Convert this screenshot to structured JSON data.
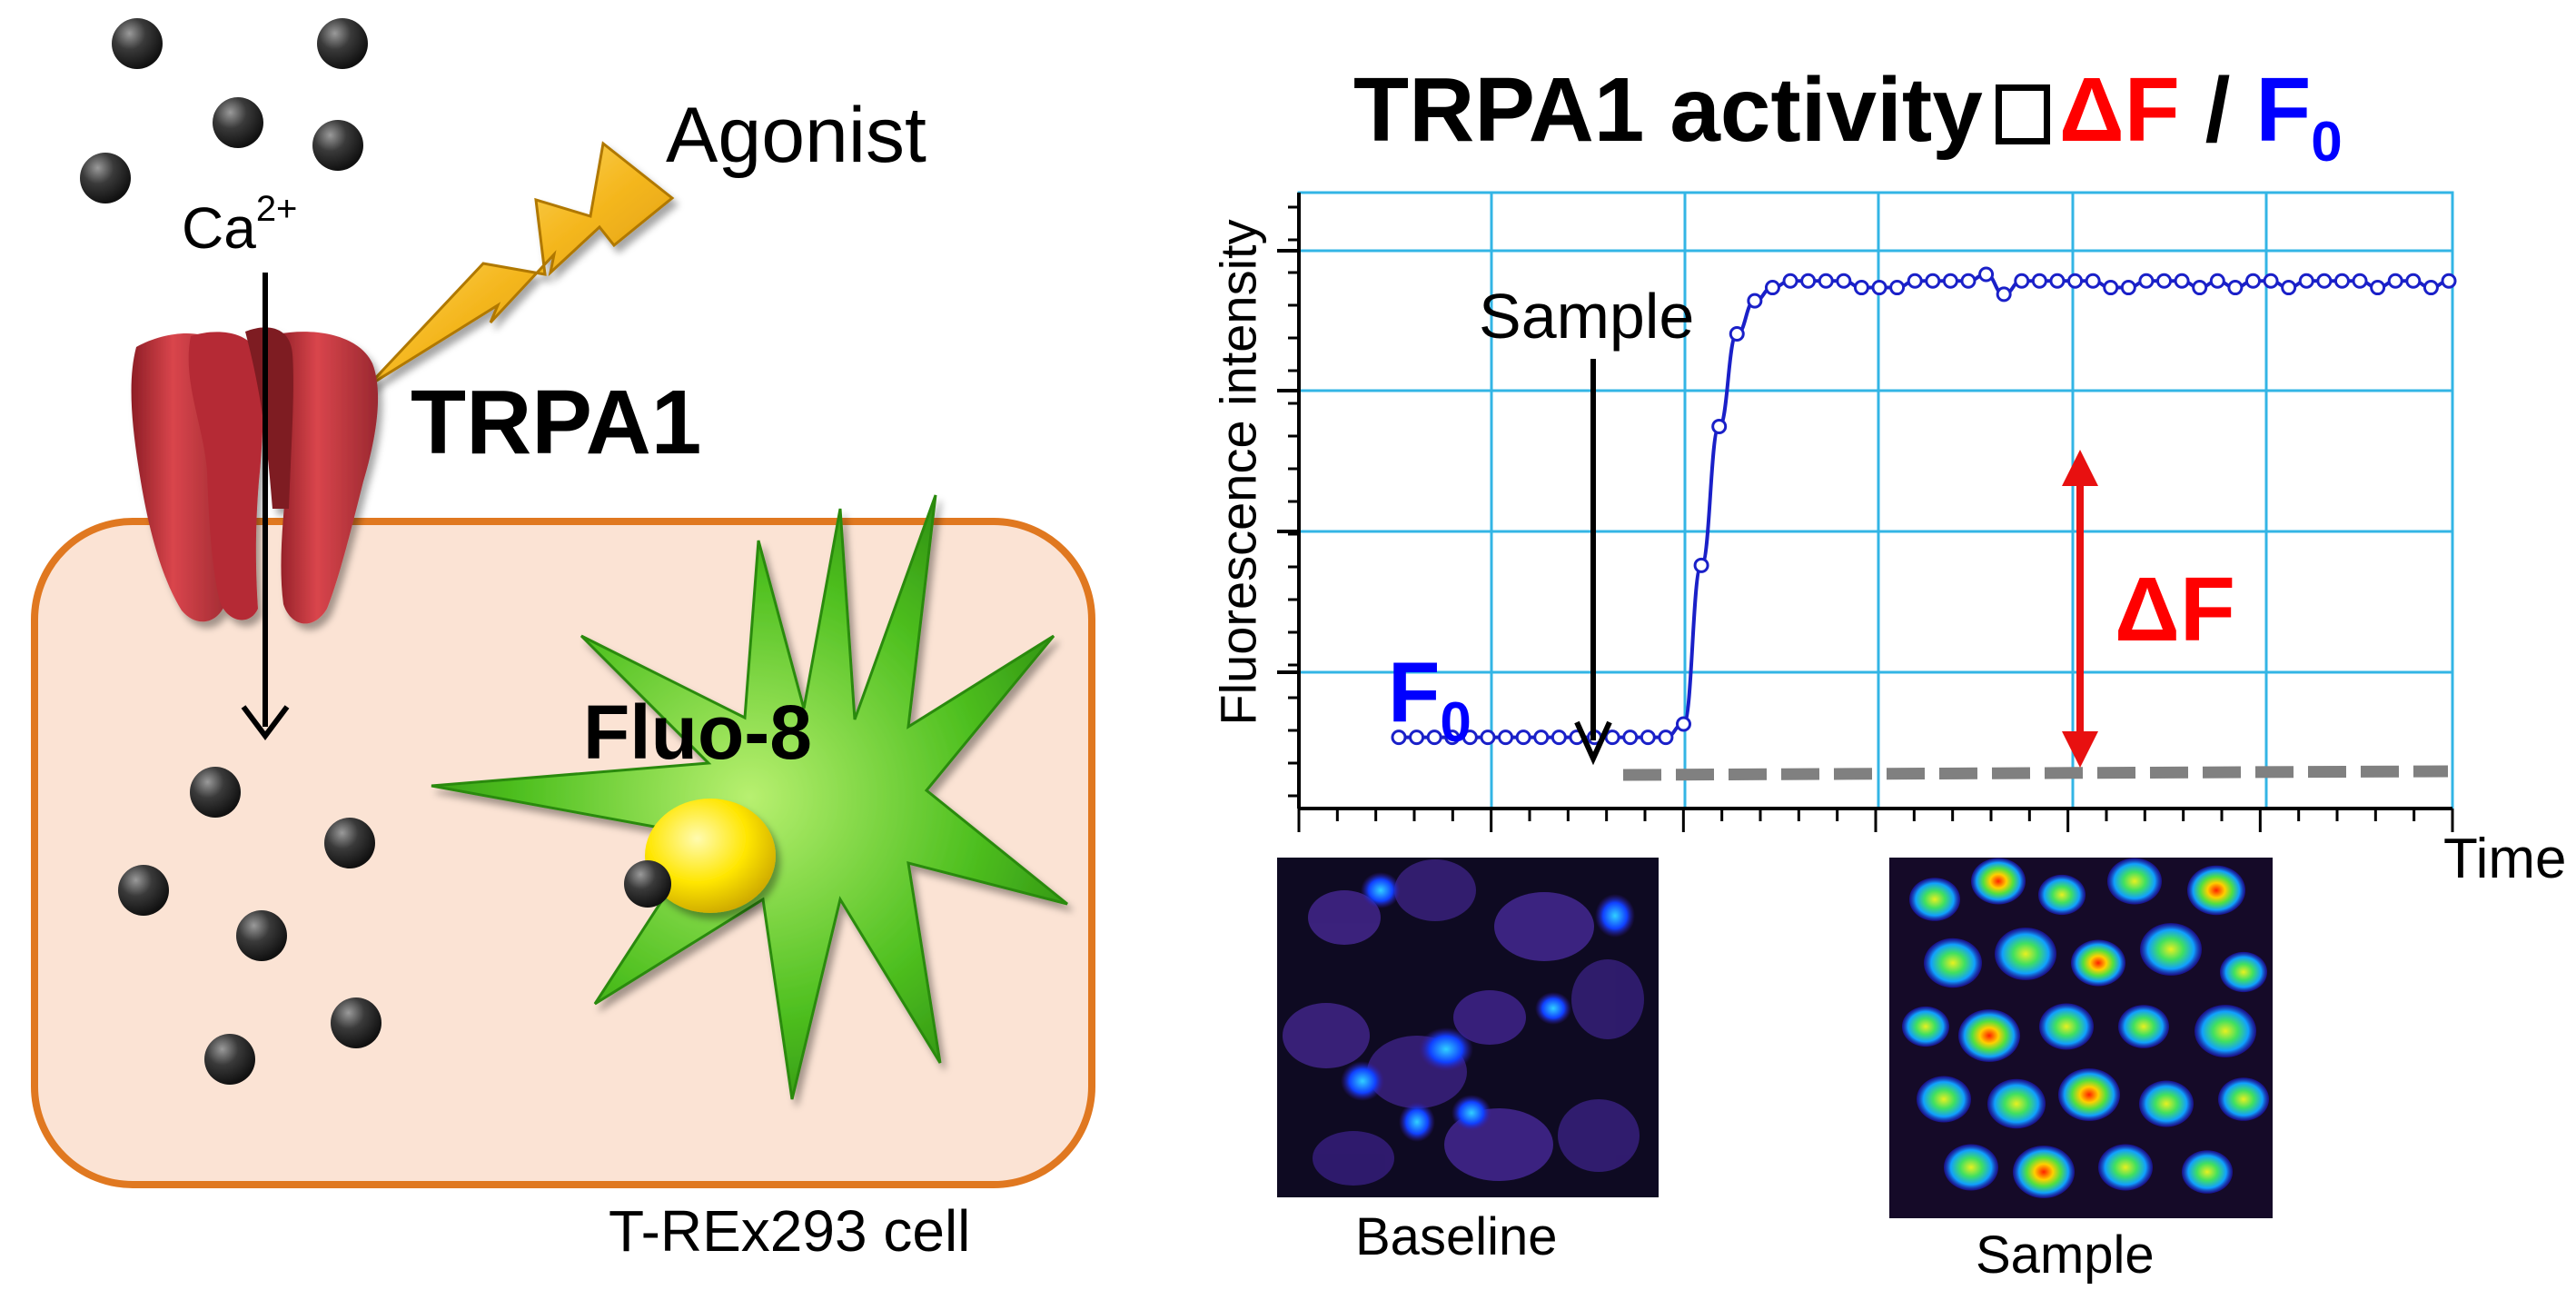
{
  "left_panel": {
    "agonist_label": "Agonist",
    "ion_label": "Ca",
    "ion_charge": "2+",
    "channel_label": "TRPA1",
    "dye_label": "Fluo-8",
    "cell_label": "T-REx293 cell"
  },
  "right_panel": {
    "title_main": "TRPA1 activity",
    "title_delta": "ΔF",
    "title_slash": "/",
    "title_f": "F",
    "title_sub": "0",
    "y_axis_label": "Fluorescence intensity",
    "x_axis_label": "Time",
    "arrow_label": "Sample",
    "baseline_label": "F",
    "baseline_sub": "0",
    "delta_label": "ΔF",
    "image_labels": [
      "Baseline",
      "Sample"
    ]
  },
  "colors": {
    "channel": "#c0363d",
    "cell_fill": "#fbe3d4",
    "cell_border": "#e07820",
    "star": "#4fc020",
    "dye": "#ffe000",
    "trace": "#1a20c8",
    "grid": "#33b5e5",
    "delta_arrow": "#e81010",
    "baseline_dash": "#808080"
  },
  "chart_data": {
    "type": "line",
    "series": [
      {
        "x": [
          0,
          1,
          2,
          3,
          4,
          5,
          6,
          7,
          8,
          9,
          10,
          11,
          12,
          13,
          14,
          15,
          16,
          17,
          18,
          19,
          20,
          21,
          22,
          23,
          24,
          25,
          26,
          27,
          28,
          29,
          30,
          31,
          32,
          33,
          34,
          35,
          36,
          37,
          38,
          39,
          40,
          41,
          42,
          43,
          44,
          45,
          46,
          47,
          48,
          49,
          50,
          51,
          52,
          53,
          54,
          55,
          56,
          57,
          58,
          59
        ],
        "values": [
          0.05,
          0.05,
          0.05,
          0.05,
          0.05,
          0.05,
          0.05,
          0.05,
          0.05,
          0.05,
          0.05,
          0.05,
          0.05,
          0.05,
          0.05,
          0.05,
          0.07,
          0.31,
          0.52,
          0.66,
          0.71,
          0.73,
          0.74,
          0.74,
          0.74,
          0.74,
          0.73,
          0.73,
          0.73,
          0.74,
          0.74,
          0.74,
          0.74,
          0.75,
          0.72,
          0.74,
          0.74,
          0.74,
          0.74,
          0.74,
          0.73,
          0.73,
          0.74,
          0.74,
          0.74,
          0.73,
          0.74,
          0.73,
          0.74,
          0.74,
          0.73,
          0.74,
          0.74,
          0.74,
          0.74,
          0.73,
          0.74,
          0.74,
          0.73,
          0.74
        ]
      }
    ],
    "xlabel": "Time",
    "ylabel": "Fluorescence intensity",
    "ylim": [
      0,
      1
    ],
    "grid": true,
    "baseline_value": 0.05,
    "sample_added_at": 15.5,
    "delta_f_at": 40
  }
}
